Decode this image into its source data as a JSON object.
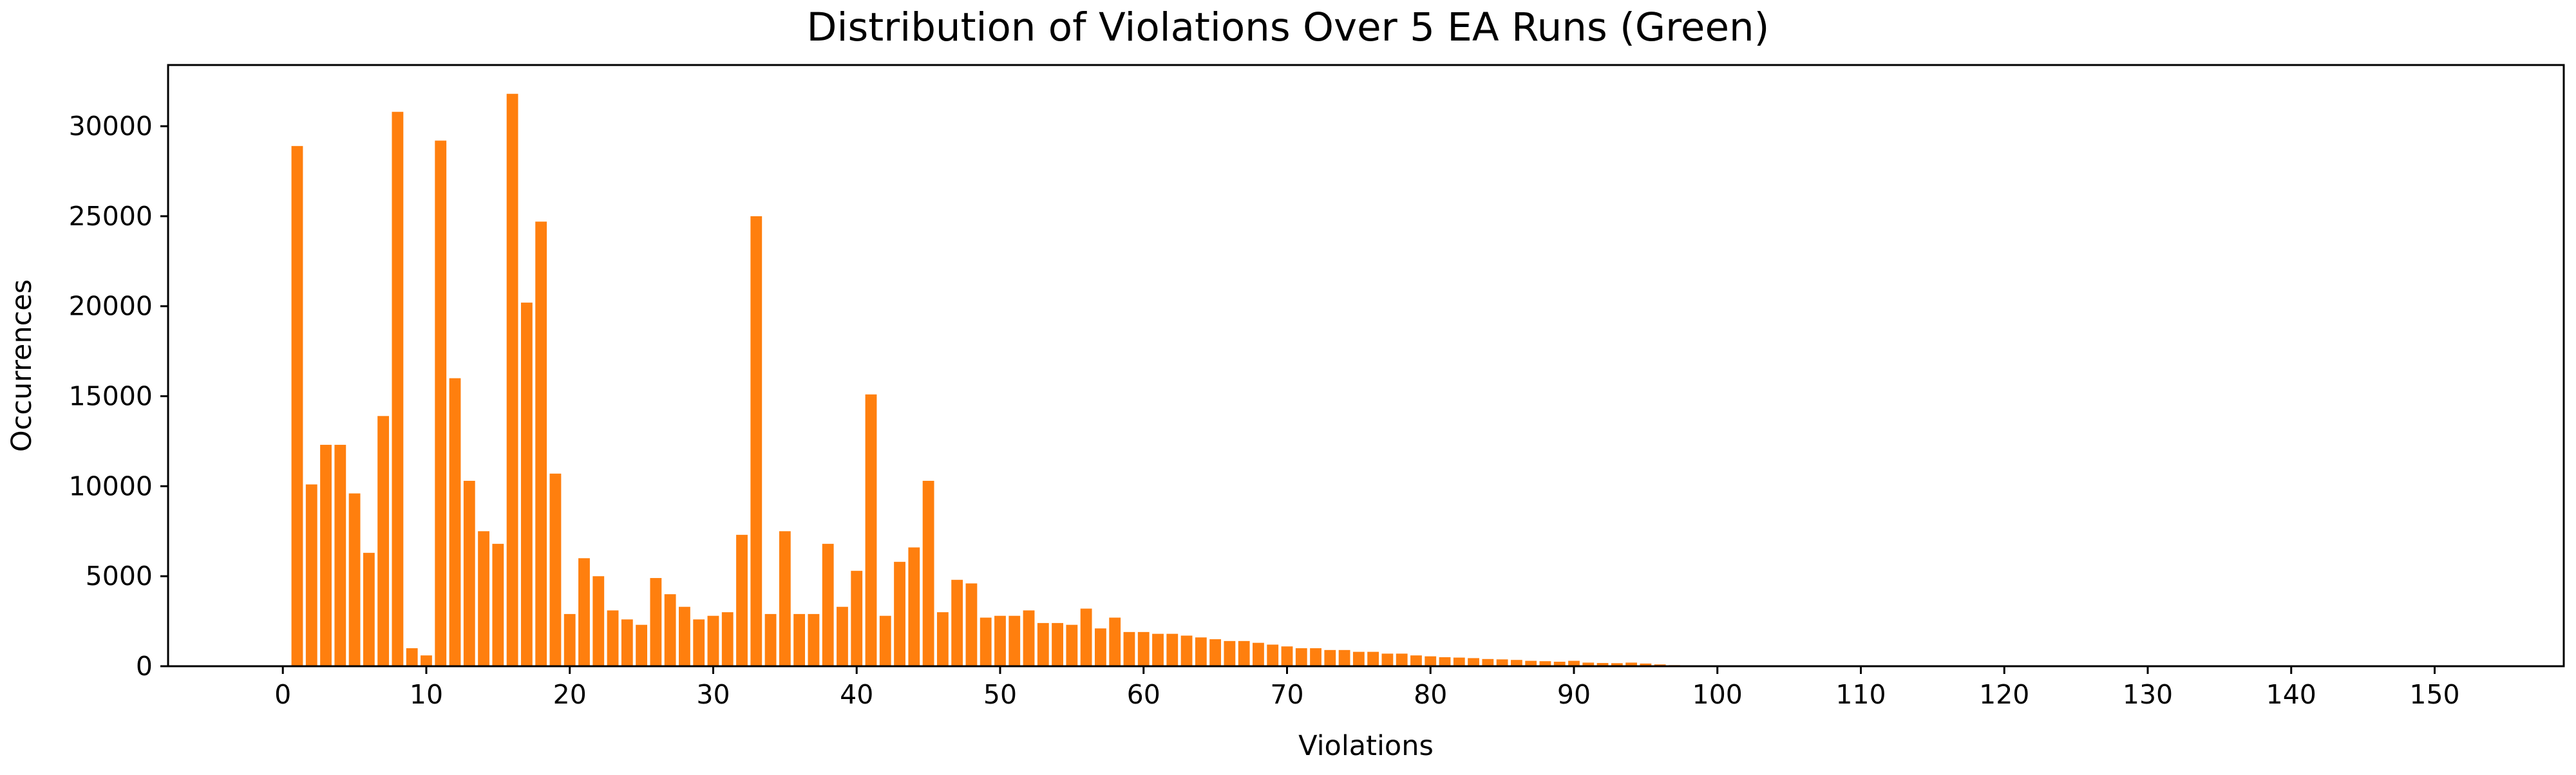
{
  "chart_data": {
    "type": "bar",
    "title": "Distribution of Violations Over 5 EA Runs (Green)",
    "xlabel": "Violations",
    "ylabel": "Occurrences",
    "xlim": [
      -8,
      159
    ],
    "ylim": [
      0,
      33400
    ],
    "xticks": [
      0,
      10,
      20,
      30,
      40,
      50,
      60,
      70,
      80,
      90,
      100,
      110,
      120,
      130,
      140,
      150
    ],
    "yticks": [
      0,
      5000,
      10000,
      15000,
      20000,
      25000,
      30000
    ],
    "grid": false,
    "legend": "none",
    "bar_color": "#ff7f0e",
    "series": [
      {
        "x": [
          1,
          2,
          3,
          4,
          5,
          6,
          7,
          8,
          9,
          10,
          11,
          12,
          13,
          14,
          15,
          16,
          17,
          18,
          19,
          20,
          21,
          22,
          23,
          24,
          25,
          26,
          27,
          28,
          29,
          30,
          31,
          32,
          33,
          34,
          35,
          36,
          37,
          38,
          39,
          40,
          41,
          42,
          43,
          44,
          45,
          46,
          47,
          48,
          49,
          50,
          51,
          52,
          53,
          54,
          55,
          56,
          57,
          58,
          59,
          60,
          61,
          62,
          63,
          64,
          65,
          66,
          67,
          68,
          69,
          70,
          71,
          72,
          73,
          74,
          75,
          76,
          77,
          78,
          79,
          80,
          81,
          82,
          83,
          84,
          85,
          86,
          87,
          88,
          89,
          90,
          91,
          92,
          93,
          94,
          95,
          96,
          97,
          98,
          99,
          100
        ],
        "values": [
          28900,
          10100,
          12300,
          12300,
          9600,
          6300,
          13900,
          30800,
          1000,
          600,
          29200,
          16000,
          10300,
          7500,
          6800,
          31800,
          20200,
          24700,
          10700,
          2900,
          6000,
          5000,
          3100,
          2600,
          2300,
          4900,
          4000,
          3300,
          2600,
          2800,
          3000,
          7300,
          25000,
          2900,
          7500,
          2900,
          2900,
          6800,
          3300,
          5300,
          15100,
          2800,
          5800,
          6600,
          10300,
          3000,
          4800,
          4600,
          2700,
          2800,
          2800,
          3100,
          2400,
          2400,
          2300,
          3200,
          2100,
          2700,
          1900,
          1900,
          1800,
          1800,
          1700,
          1600,
          1500,
          1400,
          1400,
          1300,
          1200,
          1100,
          1000,
          1000,
          900,
          900,
          800,
          800,
          700,
          700,
          600,
          550,
          500,
          480,
          450,
          400,
          380,
          350,
          300,
          280,
          250,
          300,
          200,
          180,
          170,
          200,
          150,
          100,
          60,
          40,
          30,
          20
        ]
      }
    ]
  }
}
